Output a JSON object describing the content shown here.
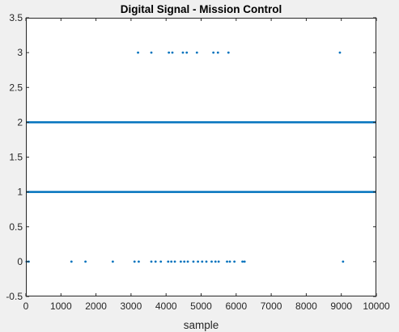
{
  "chart_data": {
    "type": "scatter",
    "title": "Digital Signal - Mission Control",
    "xlabel": "sample",
    "ylabel": "",
    "xlim": [
      0,
      10000
    ],
    "ylim": [
      -0.5,
      3.5
    ],
    "xticks": [
      0,
      1000,
      2000,
      3000,
      4000,
      5000,
      6000,
      7000,
      8000,
      9000,
      10000
    ],
    "xtick_labels": [
      "0",
      "1000",
      "2000",
      "3000",
      "4000",
      "5000",
      "6000",
      "7000",
      "8000",
      "9000",
      "10000"
    ],
    "yticks": [
      -0.5,
      0,
      0.5,
      1,
      1.5,
      2,
      2.5,
      3,
      3.5
    ],
    "ytick_labels": [
      "-0.5",
      "0",
      "0.5",
      "1",
      "1.5",
      "2",
      "2.5",
      "3",
      "3.5"
    ],
    "grid": false,
    "marker_color": "#0072bd",
    "series": [
      {
        "y": 2,
        "x_ranges": [
          [
            0,
            10000
          ]
        ],
        "description_fill": "dense"
      },
      {
        "y": 1,
        "x_ranges": [
          [
            0,
            10000
          ]
        ],
        "description_fill": "dense"
      },
      {
        "y": 3,
        "x": [
          3200,
          3580,
          4080,
          4180,
          4480,
          4590,
          4880,
          5350,
          5480,
          5780,
          8960
        ]
      },
      {
        "y": 0,
        "x": [
          20,
          80,
          1300,
          1700,
          2480,
          3100,
          3220,
          3580,
          3700,
          3850,
          4060,
          4150,
          4250,
          4420,
          4520,
          4620,
          4780,
          4910,
          5030,
          5150,
          5300,
          5410,
          5500,
          5740,
          5820,
          5950,
          6180,
          6240,
          9050
        ]
      }
    ]
  }
}
